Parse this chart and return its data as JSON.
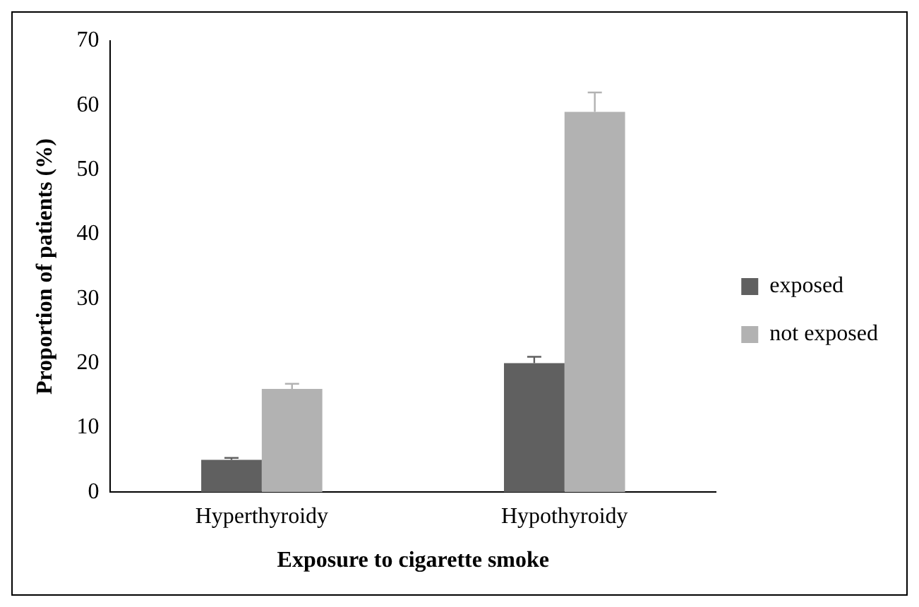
{
  "chart_data": {
    "type": "bar",
    "xlabel": "Exposure to cigarette smoke",
    "ylabel": "Proportion of patients (%)",
    "categories": [
      "Hyperthyroidy",
      "Hypothyroidy"
    ],
    "series": [
      {
        "name": "exposed",
        "color": "#606060",
        "values": [
          5,
          20
        ],
        "errors": [
          [
            5,
            5.3
          ],
          [
            20,
            21
          ]
        ]
      },
      {
        "name": "not exposed",
        "color": "#b2b2b2",
        "values": [
          16,
          59
        ],
        "errors": [
          [
            16,
            16.8
          ],
          [
            59,
            62
          ]
        ]
      }
    ],
    "ylim": [
      0,
      70
    ],
    "yticks": [
      0,
      10,
      20,
      30,
      40,
      50,
      60,
      70
    ],
    "grid": false,
    "legend": "right"
  }
}
